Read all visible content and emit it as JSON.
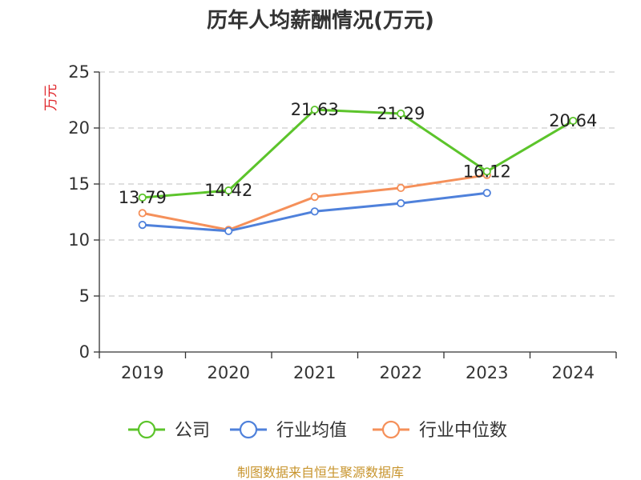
{
  "chart_data": {
    "type": "line",
    "title": "历年人均薪酬情况(万元)",
    "ylabel": "万元",
    "xlabel": "",
    "categories": [
      "2019",
      "2020",
      "2021",
      "2022",
      "2023",
      "2024"
    ],
    "ylim": [
      0,
      25
    ],
    "yticks": [
      0,
      5,
      10,
      15,
      20,
      25
    ],
    "grid": true,
    "legend_position": "bottom",
    "series": [
      {
        "name": "公司",
        "color": "#5cc42b",
        "values": [
          13.79,
          14.42,
          21.63,
          21.29,
          16.12,
          20.64
        ],
        "labels": [
          "13.79",
          "14.42",
          "21.63",
          "21.29",
          "16.12",
          "20.64"
        ]
      },
      {
        "name": "行业均值",
        "color": "#4f81db",
        "values": [
          11.35,
          10.8,
          12.55,
          13.28,
          14.2,
          null
        ]
      },
      {
        "name": "行业中位数",
        "color": "#f5905a",
        "values": [
          12.4,
          10.9,
          13.85,
          14.65,
          15.8,
          null
        ]
      }
    ]
  },
  "source": {
    "text": "制图数据来自恒生聚源数据库",
    "color": "#c8952e"
  },
  "colors": {
    "axis": "#333333",
    "grid": "#cccccc",
    "unit_label": "#e0262b"
  }
}
